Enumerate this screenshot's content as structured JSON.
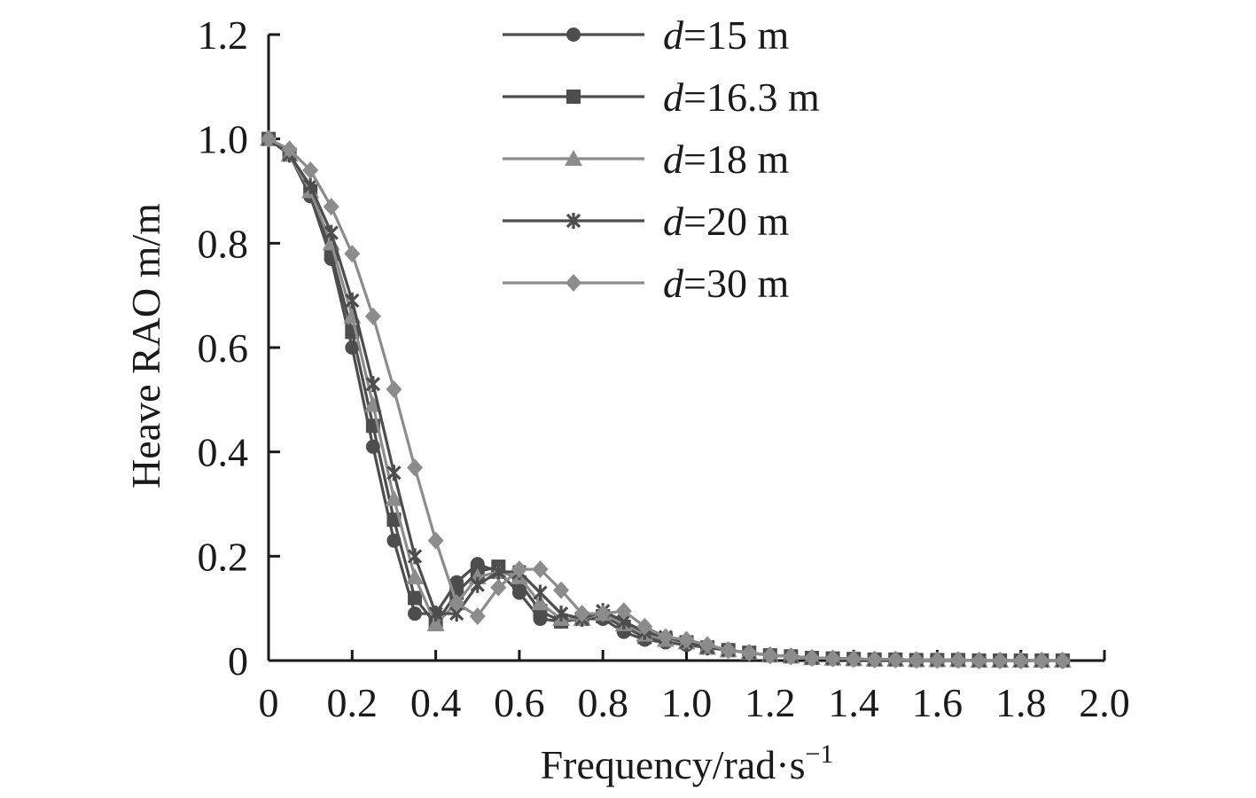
{
  "chart_data": {
    "type": "line",
    "xlabel": "Frequency/rad·s",
    "xlabel_sup": "−1",
    "ylabel": "Heave RAO m/m",
    "xlim": [
      0,
      2.0
    ],
    "ylim": [
      0,
      1.2
    ],
    "xticks": [
      "0",
      "0.2",
      "0.4",
      "0.6",
      "0.8",
      "1.0",
      "1.2",
      "1.4",
      "1.6",
      "1.8",
      "2.0"
    ],
    "yticks": [
      "0",
      "0.2",
      "0.4",
      "0.6",
      "0.8",
      "1.0",
      "1.2"
    ],
    "grid": false,
    "legend_position": "top-right",
    "x": [
      0,
      0.05,
      0.1,
      0.15,
      0.2,
      0.25,
      0.3,
      0.35,
      0.4,
      0.45,
      0.5,
      0.55,
      0.6,
      0.65,
      0.7,
      0.75,
      0.8,
      0.85,
      0.9,
      0.95,
      1.0,
      1.05,
      1.1,
      1.15,
      1.2,
      1.25,
      1.3,
      1.35,
      1.4,
      1.45,
      1.5,
      1.55,
      1.6,
      1.65,
      1.7,
      1.75,
      1.8,
      1.85,
      1.9
    ],
    "series": [
      {
        "legend_italic": "d",
        "legend_rest": "=15 m",
        "marker": "circle",
        "color": "#4d4d4d",
        "values": [
          1.0,
          0.97,
          0.89,
          0.77,
          0.6,
          0.41,
          0.23,
          0.09,
          0.09,
          0.15,
          0.185,
          0.17,
          0.13,
          0.08,
          0.075,
          0.08,
          0.08,
          0.055,
          0.04,
          0.035,
          0.03,
          0.025,
          0.02,
          0.015,
          0.01,
          0.008,
          0.005,
          0.004,
          0.003,
          0.002,
          0.002,
          0.001,
          0.001,
          0.001,
          0,
          0,
          0,
          0,
          0
        ]
      },
      {
        "legend_italic": "d",
        "legend_rest": "=16.3 m",
        "marker": "square",
        "color": "#4d4d4d",
        "values": [
          1.0,
          0.97,
          0.9,
          0.78,
          0.63,
          0.45,
          0.27,
          0.12,
          0.07,
          0.13,
          0.17,
          0.18,
          0.15,
          0.095,
          0.075,
          0.08,
          0.085,
          0.065,
          0.045,
          0.04,
          0.035,
          0.025,
          0.02,
          0.015,
          0.01,
          0.008,
          0.005,
          0.004,
          0.003,
          0.002,
          0.002,
          0.001,
          0.001,
          0.001,
          0,
          0,
          0,
          0,
          0
        ]
      },
      {
        "legend_italic": "d",
        "legend_rest": "=18 m",
        "marker": "triangle",
        "color": "#8c8c8c",
        "values": [
          1.0,
          0.97,
          0.9,
          0.8,
          0.66,
          0.49,
          0.31,
          0.16,
          0.07,
          0.11,
          0.16,
          0.17,
          0.16,
          0.11,
          0.08,
          0.08,
          0.09,
          0.07,
          0.05,
          0.04,
          0.035,
          0.025,
          0.02,
          0.015,
          0.01,
          0.008,
          0.005,
          0.004,
          0.003,
          0.002,
          0.002,
          0.001,
          0.001,
          0.001,
          0,
          0,
          0,
          0,
          0
        ]
      },
      {
        "legend_italic": "d",
        "legend_rest": "=20 m",
        "marker": "star",
        "color": "#4d4d4d",
        "values": [
          1.0,
          0.97,
          0.91,
          0.82,
          0.69,
          0.53,
          0.36,
          0.2,
          0.09,
          0.09,
          0.145,
          0.17,
          0.17,
          0.13,
          0.09,
          0.08,
          0.095,
          0.075,
          0.055,
          0.045,
          0.035,
          0.025,
          0.02,
          0.015,
          0.01,
          0.008,
          0.005,
          0.004,
          0.003,
          0.002,
          0.002,
          0.001,
          0.001,
          0.001,
          0,
          0,
          0,
          0,
          0
        ]
      },
      {
        "legend_italic": "d",
        "legend_rest": "=30 m",
        "marker": "diamond",
        "color": "#8c8c8c",
        "values": [
          1.0,
          0.98,
          0.94,
          0.87,
          0.78,
          0.66,
          0.52,
          0.37,
          0.23,
          0.11,
          0.085,
          0.14,
          0.175,
          0.175,
          0.135,
          0.09,
          0.09,
          0.095,
          0.065,
          0.045,
          0.04,
          0.03,
          0.02,
          0.015,
          0.01,
          0.008,
          0.005,
          0.004,
          0.003,
          0.002,
          0.002,
          0.001,
          0.001,
          0.001,
          0,
          0,
          0,
          0,
          0
        ]
      }
    ]
  }
}
